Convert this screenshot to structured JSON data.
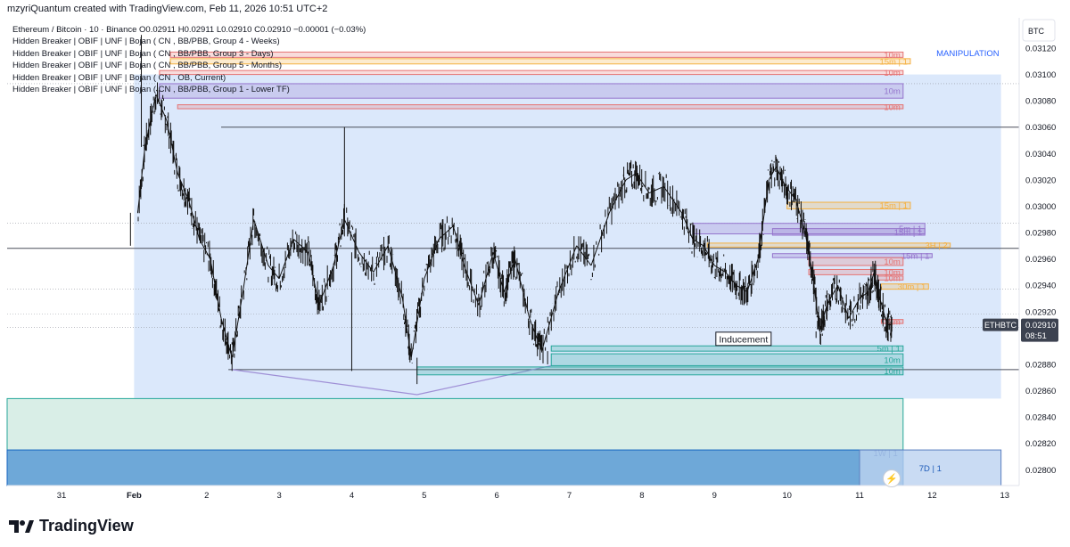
{
  "header": {
    "credit": "mzyriQuantum created with TradingView.com, Feb 11, 2026 10:51 UTC+2"
  },
  "legend": {
    "symbol_line": "Ethereum / Bitcoin · 10 · Binance  O0.02911  H0.02911  L0.02910  C0.02910  −0.00001 (−0.03%)",
    "indicators": [
      "Hidden Breaker | OBIF | UNF | Bojan ( CN , BB/PBB, Group 4 - Weeks)",
      "Hidden Breaker | OBIF | UNF | Bojan ( CN , BB/PBB, Group 3 - Days)",
      "Hidden Breaker | OBIF | UNF | Bojan ( CN , BB/PBB, Group 5 - Months)",
      "Hidden Breaker | OBIF | UNF | Bojan ( CN , OB, Current)",
      "Hidden Breaker | OBIF | UNF | Bojan ( CN , BB/PBB, Group 1 - Lower TF)"
    ]
  },
  "price_axis": {
    "currency": "BTC"
  },
  "brand": {
    "name": "TradingView"
  },
  "colors": {
    "manipulation_zone": "#dbe8fb",
    "demand_zone": "#d9eee7",
    "weekly_zone": "#5b9bd5",
    "red_zone": "#e57373",
    "orange_zone": "#f5b041",
    "purple_zone": "#9575cd",
    "teal_zone": "#26a69a",
    "price_badge": "#3c4250"
  },
  "chart_data": {
    "type": "line",
    "title": "Ethereum / Bitcoin · 10 · Binance",
    "symbol": "ETHBTC",
    "ohlc": {
      "open": 0.02911,
      "high": 0.02911,
      "low": 0.0291,
      "close": 0.0291,
      "change": -1e-05,
      "change_pct": -0.03
    },
    "x_ticks": [
      {
        "day": 0,
        "label": "31"
      },
      {
        "day": 1,
        "label": "Feb"
      },
      {
        "day": 2,
        "label": "2"
      },
      {
        "day": 3,
        "label": "3"
      },
      {
        "day": 4,
        "label": "4"
      },
      {
        "day": 5,
        "label": "5"
      },
      {
        "day": 6,
        "label": "6"
      },
      {
        "day": 7,
        "label": "7"
      },
      {
        "day": 8,
        "label": "8"
      },
      {
        "day": 9,
        "label": "9"
      },
      {
        "day": 10,
        "label": "10"
      },
      {
        "day": 11,
        "label": "11"
      },
      {
        "day": 12,
        "label": "12"
      },
      {
        "day": 13,
        "label": "13"
      }
    ],
    "y_ticks": [
      0.0312,
      0.031,
      0.0308,
      0.0306,
      0.0304,
      0.0302,
      0.03,
      0.0298,
      0.0296,
      0.0294,
      0.0292,
      0.0288,
      0.0286,
      0.0284,
      0.0282,
      0.028
    ],
    "y_tick_labels": [
      "0.03120",
      "0.03100",
      "0.03080",
      "0.03060",
      "0.03040",
      "0.03020",
      "0.03000",
      "0.02980",
      "0.02960",
      "0.02940",
      "0.02920",
      "0.02880",
      "0.02860",
      "0.02840",
      "0.02820",
      "0.02800"
    ],
    "ylim": [
      0.02788,
      0.03143
    ],
    "xlim": [
      -0.75,
      13.2
    ],
    "last_price": {
      "value": 0.0291,
      "label": "0.02910",
      "countdown": "08:51",
      "symbol_tag": "ETHBTC"
    },
    "series": [
      {
        "name": "ETHBTC price",
        "points": [
          [
            1.05,
            0.02995
          ],
          [
            1.15,
            0.03045
          ],
          [
            1.3,
            0.03085
          ],
          [
            1.45,
            0.03065
          ],
          [
            1.6,
            0.03025
          ],
          [
            1.75,
            0.03005
          ],
          [
            1.9,
            0.02975
          ],
          [
            2.05,
            0.0296
          ],
          [
            2.2,
            0.02915
          ],
          [
            2.35,
            0.02885
          ],
          [
            2.5,
            0.02935
          ],
          [
            2.65,
            0.0299
          ],
          [
            2.85,
            0.02955
          ],
          [
            3.0,
            0.02945
          ],
          [
            3.2,
            0.02975
          ],
          [
            3.4,
            0.02965
          ],
          [
            3.55,
            0.02925
          ],
          [
            3.75,
            0.02955
          ],
          [
            3.9,
            0.0299
          ],
          [
            4.1,
            0.02965
          ],
          [
            4.3,
            0.0295
          ],
          [
            4.5,
            0.0297
          ],
          [
            4.7,
            0.0293
          ],
          [
            4.82,
            0.02885
          ],
          [
            5.0,
            0.02945
          ],
          [
            5.2,
            0.02975
          ],
          [
            5.4,
            0.02985
          ],
          [
            5.55,
            0.02955
          ],
          [
            5.75,
            0.02925
          ],
          [
            5.95,
            0.02965
          ],
          [
            6.1,
            0.02935
          ],
          [
            6.25,
            0.0296
          ],
          [
            6.45,
            0.02915
          ],
          [
            6.62,
            0.0289
          ],
          [
            6.85,
            0.02935
          ],
          [
            7.1,
            0.0297
          ],
          [
            7.3,
            0.02955
          ],
          [
            7.55,
            0.02995
          ],
          [
            7.78,
            0.0302
          ],
          [
            7.92,
            0.03025
          ],
          [
            8.1,
            0.0301
          ],
          [
            8.3,
            0.03015
          ],
          [
            8.55,
            0.02995
          ],
          [
            8.7,
            0.02975
          ],
          [
            8.85,
            0.0297
          ],
          [
            9.0,
            0.02955
          ],
          [
            9.15,
            0.0295
          ],
          [
            9.3,
            0.0294
          ],
          [
            9.45,
            0.02935
          ],
          [
            9.6,
            0.0296
          ],
          [
            9.75,
            0.0302
          ],
          [
            9.85,
            0.0303
          ],
          [
            9.98,
            0.03015
          ],
          [
            10.12,
            0.03005
          ],
          [
            10.25,
            0.0298
          ],
          [
            10.35,
            0.0295
          ],
          [
            10.45,
            0.02905
          ],
          [
            10.55,
            0.02925
          ],
          [
            10.7,
            0.0294
          ],
          [
            10.85,
            0.02915
          ],
          [
            11.0,
            0.0293
          ],
          [
            11.12,
            0.02935
          ],
          [
            11.2,
            0.0295
          ],
          [
            11.28,
            0.0293
          ],
          [
            11.38,
            0.0291
          ],
          [
            11.45,
            0.0291
          ]
        ],
        "spikes": [
          [
            0.95,
            0.0297
          ],
          [
            1.1,
            0.0313
          ],
          [
            2.35,
            0.02875
          ],
          [
            3.9,
            0.0306
          ],
          [
            4.0,
            0.02875
          ],
          [
            4.9,
            0.02865
          ],
          [
            5.25,
            0.0299
          ],
          [
            6.7,
            0.0288
          ],
          [
            7.75,
            0.0303
          ],
          [
            9.85,
            0.0303
          ],
          [
            10.4,
            0.029
          ]
        ]
      }
    ],
    "horizontal_lines": [
      {
        "start_day": 2.2,
        "price": 0.0306
      },
      {
        "start_day": -0.75,
        "price": 0.02968
      },
      {
        "start_day": 2.3,
        "price": 0.02876
      }
    ],
    "dotted_lines": [
      0.03093,
      0.02987,
      0.02937,
      0.02918,
      0.02908
    ],
    "zones": [
      {
        "name": "manipulation-zone",
        "label": "MANIPULATION",
        "x0": 1.0,
        "x1": 12.95,
        "y0": 0.02854,
        "y1": 0.031
      },
      {
        "name": "demand-zone",
        "label": "",
        "x0": -0.75,
        "x1": 11.6,
        "y0": 0.02788,
        "y1": 0.02854
      },
      {
        "name": "weekly-zone",
        "label": "1W | 1",
        "x0": -0.75,
        "x1": 11.6,
        "y0": 0.02788,
        "y1": 0.02815
      },
      {
        "name": "7d-zone",
        "label": "7D | 1",
        "x0": 11.0,
        "x1": 12.95,
        "y0": 0.02788,
        "y1": 0.02815
      }
    ],
    "order_blocks": [
      {
        "type": "red",
        "label": "10m",
        "x0": 1.5,
        "x1": 11.6,
        "y0": 0.03113,
        "y1": 0.03117
      },
      {
        "type": "orange",
        "label": "15m | 1",
        "x0": 1.5,
        "x1": 11.7,
        "y0": 0.03108,
        "y1": 0.03112
      },
      {
        "type": "red",
        "label": "10m",
        "x0": 1.35,
        "x1": 11.6,
        "y0": 0.031,
        "y1": 0.03103
      },
      {
        "type": "purple",
        "label": "10m",
        "x0": 1.35,
        "x1": 11.6,
        "y0": 0.03082,
        "y1": 0.03093
      },
      {
        "type": "red",
        "label": "10m",
        "x0": 1.6,
        "x1": 11.6,
        "y0": 0.03074,
        "y1": 0.03077
      },
      {
        "type": "orange",
        "label": "15m | 1",
        "x0": 10.0,
        "x1": 11.7,
        "y0": 0.02998,
        "y1": 0.03003
      },
      {
        "type": "purple",
        "label": "5m | 1",
        "x0": 8.7,
        "x1": 11.9,
        "y0": 0.02979,
        "y1": 0.02987
      },
      {
        "type": "purple",
        "label": "15m | 1",
        "x0": 9.8,
        "x1": 11.9,
        "y0": 0.02978,
        "y1": 0.02983
      },
      {
        "type": "orange",
        "label": "3H | 2",
        "x0": 8.9,
        "x1": 12.25,
        "y0": 0.02969,
        "y1": 0.02972
      },
      {
        "type": "purple",
        "label": "15m | 1",
        "x0": 9.8,
        "x1": 12.0,
        "y0": 0.02961,
        "y1": 0.02964
      },
      {
        "type": "red",
        "label": "10m",
        "x0": 10.3,
        "x1": 11.6,
        "y0": 0.02955,
        "y1": 0.02961
      },
      {
        "type": "red",
        "label": "10m",
        "x0": 10.3,
        "x1": 11.6,
        "y0": 0.02948,
        "y1": 0.02952
      },
      {
        "type": "red",
        "label": "10m",
        "x0": 11.25,
        "x1": 11.6,
        "y0": 0.02944,
        "y1": 0.02947
      },
      {
        "type": "orange",
        "label": "30m | 1",
        "x0": 11.3,
        "x1": 11.95,
        "y0": 0.02937,
        "y1": 0.02941
      },
      {
        "type": "red",
        "label": "1m",
        "x0": 11.3,
        "x1": 11.6,
        "y0": 0.02911,
        "y1": 0.02914
      },
      {
        "type": "teal",
        "label": "5m | 1",
        "x0": 6.75,
        "x1": 11.6,
        "y0": 0.0289,
        "y1": 0.02894
      },
      {
        "type": "teal",
        "label": "10m",
        "x0": 6.75,
        "x1": 11.6,
        "y0": 0.02879,
        "y1": 0.02888
      },
      {
        "type": "teal",
        "label": "10m",
        "x0": 4.9,
        "x1": 11.6,
        "y0": 0.02872,
        "y1": 0.02878
      }
    ],
    "annotations": [
      {
        "text": "Inducement",
        "day": 9.4,
        "price": 0.02899
      }
    ],
    "triangle": [
      [
        2.35,
        0.02876
      ],
      [
        4.9,
        0.02857
      ],
      [
        6.75,
        0.02879
      ]
    ]
  }
}
